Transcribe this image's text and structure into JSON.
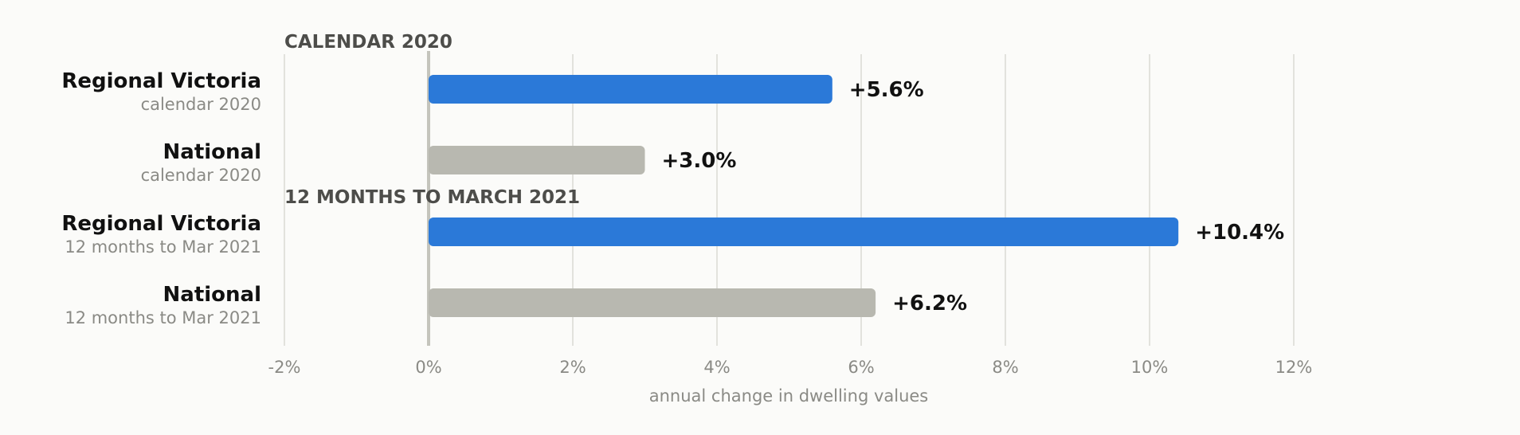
{
  "chart_data": {
    "type": "bar",
    "orientation": "horizontal",
    "xlabel": "annual change in dwelling values",
    "xlim": [
      -2,
      12
    ],
    "xticks": [
      "-2%",
      "0%",
      "2%",
      "4%",
      "6%",
      "8%",
      "10%",
      "12%"
    ],
    "grid": true,
    "groups": [
      {
        "label": "CALENDAR 2020",
        "bars": [
          {
            "name": "Regional Victoria",
            "sub": "calendar 2020",
            "value": 5.6,
            "value_label": "+5.6%",
            "color": "#2b79d8"
          },
          {
            "name": "National",
            "sub": "calendar 2020",
            "value": 3.0,
            "value_label": "+3.0%",
            "color": "#b8b8b0"
          }
        ]
      },
      {
        "label": "12 MONTHS TO MARCH 2021",
        "bars": [
          {
            "name": "Regional Victoria",
            "sub": "12 months to Mar 2021",
            "value": 10.4,
            "value_label": "+10.4%",
            "color": "#2b79d8"
          },
          {
            "name": "National",
            "sub": "12 months to Mar 2021",
            "value": 6.2,
            "value_label": "+6.2%",
            "color": "#b8b8b0"
          }
        ]
      }
    ],
    "colors": {
      "highlight": "#2b79d8",
      "neutral": "#b8b8b0",
      "grid": "#d9d9d4",
      "zero_line": "#c4c4bc"
    }
  }
}
